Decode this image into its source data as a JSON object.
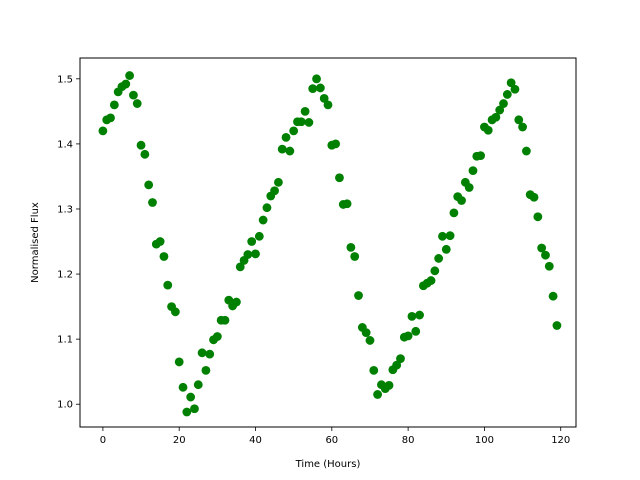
{
  "chart_data": {
    "type": "scatter",
    "title": "",
    "xlabel": "Time (Hours)",
    "ylabel": "Normalised Flux",
    "xlim": [
      -6,
      124
    ],
    "ylim": [
      0.965,
      1.532
    ],
    "xticks": [
      0,
      20,
      40,
      60,
      80,
      100,
      120
    ],
    "yticks": [
      1.0,
      1.1,
      1.2,
      1.3,
      1.4,
      1.5
    ],
    "xtick_labels": [
      "0",
      "20",
      "40",
      "60",
      "80",
      "100",
      "120"
    ],
    "ytick_labels": [
      "1.0",
      "1.1",
      "1.2",
      "1.3",
      "1.4",
      "1.5"
    ],
    "grid": false,
    "marker_color": "#008000",
    "series": [
      {
        "x": [
          0,
          1,
          2,
          3,
          4,
          5,
          6,
          7,
          8,
          9,
          10,
          11,
          12,
          13,
          14,
          15,
          16,
          17,
          18,
          19,
          20,
          21,
          22,
          23,
          24,
          25,
          26,
          27,
          28,
          29,
          30,
          31,
          32,
          33,
          34,
          35,
          36,
          37,
          38,
          39,
          40,
          41,
          42,
          43,
          44,
          45,
          46,
          47,
          48,
          49,
          50,
          51,
          52,
          53,
          54,
          55,
          56,
          57,
          58,
          59,
          60,
          61,
          62,
          63,
          64,
          65,
          66,
          67,
          68,
          69,
          70,
          71,
          72,
          73,
          74,
          75,
          76,
          77,
          78,
          79,
          80,
          81,
          82,
          83,
          84,
          85,
          86,
          87,
          88,
          89,
          90,
          91,
          92,
          93,
          94,
          95,
          96,
          97,
          98,
          99,
          100,
          101,
          102,
          103,
          104,
          105,
          106,
          107,
          108,
          109,
          110,
          111,
          112,
          113,
          114,
          115,
          116,
          117,
          118,
          119
        ],
        "y": [
          1.42,
          1.437,
          1.44,
          1.46,
          1.48,
          1.488,
          1.492,
          1.505,
          1.475,
          1.462,
          1.398,
          1.384,
          1.337,
          1.31,
          1.246,
          1.25,
          1.227,
          1.183,
          1.15,
          1.142,
          1.065,
          1.026,
          0.988,
          1.011,
          0.993,
          1.03,
          1.079,
          1.052,
          1.077,
          1.099,
          1.104,
          1.129,
          1.129,
          1.16,
          1.151,
          1.157,
          1.211,
          1.221,
          1.23,
          1.25,
          1.231,
          1.258,
          1.283,
          1.302,
          1.32,
          1.328,
          1.341,
          1.392,
          1.41,
          1.389,
          1.42,
          1.434,
          1.434,
          1.45,
          1.433,
          1.485,
          1.5,
          1.486,
          1.47,
          1.46,
          1.398,
          1.4,
          1.348,
          1.307,
          1.308,
          1.241,
          1.227,
          1.167,
          1.118,
          1.11,
          1.098,
          1.052,
          1.015,
          1.03,
          1.024,
          1.029,
          1.053,
          1.06,
          1.07,
          1.103,
          1.105,
          1.135,
          1.112,
          1.137,
          1.182,
          1.186,
          1.19,
          1.205,
          1.224,
          1.258,
          1.238,
          1.259,
          1.294,
          1.319,
          1.313,
          1.341,
          1.333,
          1.359,
          1.381,
          1.382,
          1.426,
          1.421,
          1.437,
          1.441,
          1.452,
          1.462,
          1.476,
          1.494,
          1.484,
          1.437,
          1.426,
          1.389,
          1.322,
          1.318,
          1.288,
          1.24,
          1.229,
          1.212,
          1.166,
          1.121
        ]
      }
    ]
  }
}
